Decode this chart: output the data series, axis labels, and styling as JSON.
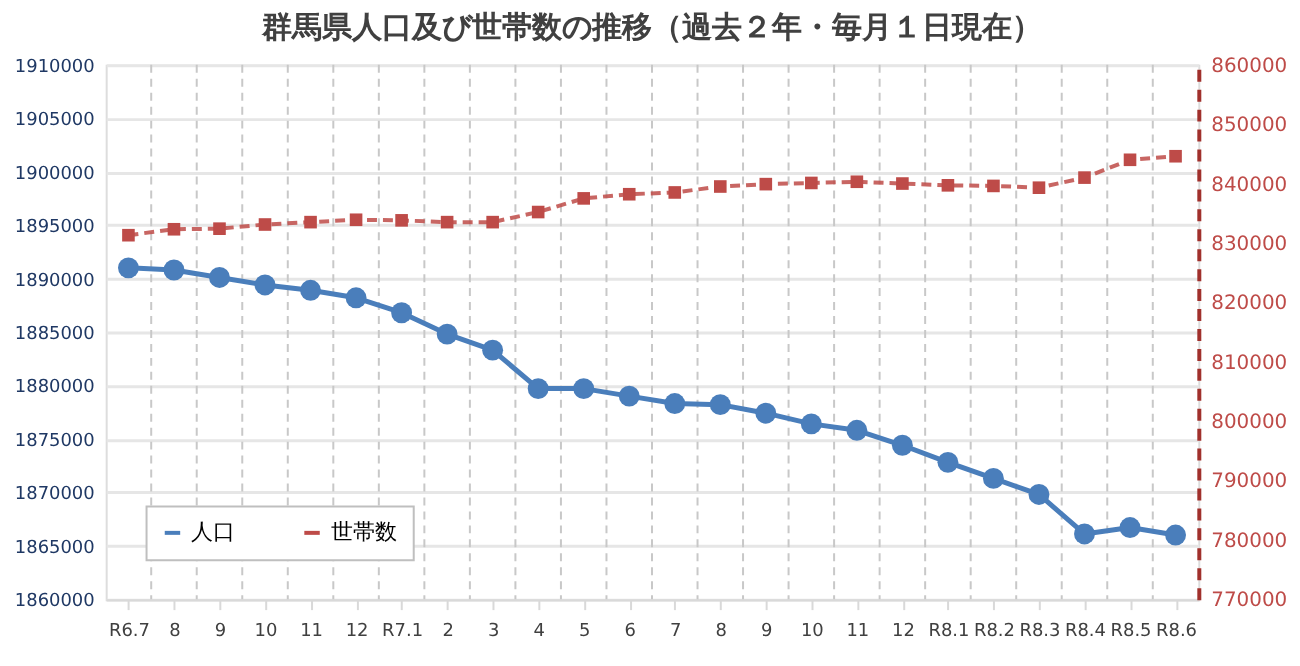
{
  "chart_data": {
    "type": "line",
    "title": "群馬県人口及び世帯数の推移（過去２年・毎月１日現在）",
    "categories": [
      "R6.7",
      "8",
      "9",
      "10",
      "11",
      "12",
      "R7.1",
      "2",
      "3",
      "4",
      "5",
      "6",
      "7",
      "8",
      "9",
      "10",
      "11",
      "12",
      "R8.1",
      "R8.2",
      "R8.3",
      "R8.4",
      "R8.5",
      "R8.6"
    ],
    "series": [
      {
        "name": "人口",
        "color": "#4a7ebb",
        "marker": "circle",
        "line_style": "solid",
        "values": [
          1891000,
          1890800,
          1890100,
          1889400,
          1888900,
          1888200,
          1886800,
          1884800,
          1883300,
          1879700,
          1879700,
          1879000,
          1878300,
          1878200,
          1877400,
          1876400,
          1875800,
          1874400,
          1872800,
          1871300,
          1869800,
          1866100,
          1866700,
          1866000
        ]
      },
      {
        "name": "世帯数",
        "color": "#be4b48",
        "marker": "square",
        "line_style": "dashed",
        "axis": "y2",
        "values": [
          831300,
          832300,
          832400,
          833100,
          833500,
          833900,
          833800,
          833500,
          833500,
          835200,
          837500,
          838200,
          838500,
          839500,
          839900,
          840100,
          840300,
          840000,
          839700,
          839600,
          839300,
          841000,
          844000,
          844600
        ]
      }
    ],
    "ylim": [
      1860000,
      1910000
    ],
    "yticks": [
      1860000,
      1865000,
      1870000,
      1875000,
      1880000,
      1885000,
      1890000,
      1895000,
      1900000,
      1905000,
      1910000
    ],
    "y2lim": [
      770000,
      860000
    ],
    "y2ticks": [
      770000,
      780000,
      790000,
      800000,
      810000,
      820000,
      830000,
      840000,
      850000,
      860000
    ],
    "grid": true,
    "legend": "bottom left"
  }
}
